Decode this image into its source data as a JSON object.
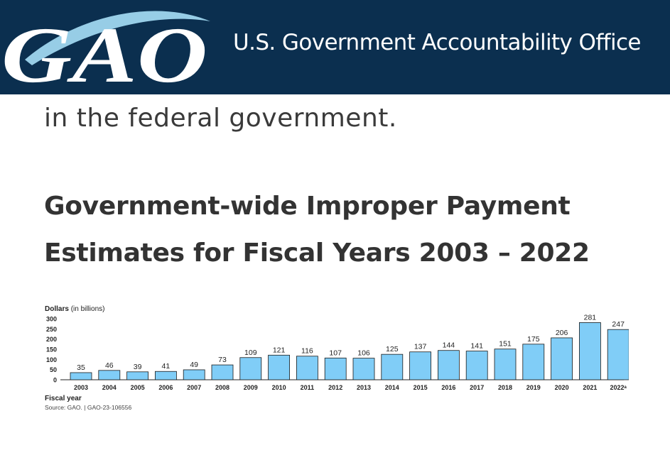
{
  "header": {
    "logo_text": "GAO",
    "org_name": "U.S. Government Accountability Office"
  },
  "article": {
    "lead_text": "in the federal government.",
    "heading_line1": "Government-wide Improper Payment",
    "heading_line2": "Estimates for Fiscal Years 2003 – 2022"
  },
  "chart_data": {
    "type": "bar",
    "ylabel_bold": "Dollars",
    "ylabel_rest": "(in billions)",
    "xlabel": "Fiscal year",
    "ylim": [
      0,
      300
    ],
    "yticks": [
      "0",
      "50",
      "100",
      "150",
      "200",
      "250",
      "300"
    ],
    "categories": [
      "2003",
      "2004",
      "2005",
      "2006",
      "2007",
      "2008",
      "2009",
      "2010",
      "2011",
      "2012",
      "2013",
      "2014",
      "2015",
      "2016",
      "2017",
      "2018",
      "2019",
      "2020",
      "2021",
      "2022ᵃ"
    ],
    "values": [
      35,
      46,
      39,
      41,
      49,
      73,
      109,
      121,
      116,
      107,
      106,
      125,
      137,
      144,
      141,
      151,
      175,
      206,
      281,
      247
    ],
    "bar_color": "#80cdf7",
    "source": "Source: GAO.  |  GAO-23-106556"
  }
}
